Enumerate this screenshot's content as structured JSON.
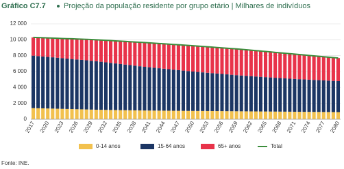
{
  "chart_data": {
    "type": "stacked_bar_line",
    "label": "Gráfico C7.7",
    "title": "Projeção da população residente por grupo etário | Milhares de indivíduos",
    "source": "Fonte: INE.",
    "categories": [
      "2017",
      null,
      null,
      "2020",
      null,
      null,
      "2023",
      null,
      null,
      "2026",
      null,
      null,
      "2029",
      null,
      null,
      "2032",
      null,
      null,
      "2035",
      null,
      null,
      "2038",
      null,
      null,
      "2041",
      null,
      null,
      "2044",
      null,
      null,
      "2047",
      null,
      null,
      "2050",
      null,
      null,
      "2053",
      null,
      null,
      "2056",
      null,
      null,
      "2059",
      null,
      null,
      "2062",
      null,
      null,
      "2065",
      null,
      null,
      "2068",
      null,
      null,
      "2071",
      null,
      null,
      "2074",
      null,
      null,
      "2077",
      null,
      null,
      "2080"
    ],
    "series": [
      {
        "name": "0-14 anos",
        "color": "#f2c14e",
        "values": [
          1400,
          1385,
          1370,
          1355,
          1340,
          1325,
          1310,
          1295,
          1280,
          1265,
          1250,
          1235,
          1215,
          1200,
          1190,
          1180,
          1170,
          1160,
          1150,
          1140,
          1130,
          1120,
          1110,
          1100,
          1095,
          1090,
          1085,
          1080,
          1075,
          1070,
          1065,
          1060,
          1055,
          1050,
          1045,
          1040,
          1035,
          1030,
          1025,
          1020,
          1015,
          1010,
          1005,
          1000,
          995,
          990,
          985,
          980,
          975,
          970,
          965,
          960,
          955,
          950,
          945,
          940,
          935,
          930,
          925,
          920,
          915,
          910,
          905,
          900
        ]
      },
      {
        "name": "15-64 anos",
        "color": "#1c3664",
        "values": [
          6600,
          6560,
          6520,
          6485,
          6450,
          6410,
          6370,
          6330,
          6295,
          6255,
          6215,
          6180,
          6140,
          6100,
          6040,
          5980,
          5920,
          5860,
          5800,
          5740,
          5680,
          5620,
          5560,
          5500,
          5445,
          5390,
          5335,
          5280,
          5225,
          5170,
          5115,
          5060,
          5005,
          4950,
          4905,
          4860,
          4815,
          4770,
          4725,
          4680,
          4635,
          4590,
          4545,
          4500,
          4465,
          4430,
          4395,
          4360,
          4325,
          4290,
          4255,
          4220,
          4185,
          4150,
          4125,
          4100,
          4075,
          4050,
          4025,
          4000,
          3975,
          3950,
          3925,
          3900
        ]
      },
      {
        "name": "65+ anos",
        "color": "#e8334a",
        "values": [
          2300,
          2330,
          2360,
          2390,
          2420,
          2450,
          2480,
          2515,
          2545,
          2575,
          2605,
          2640,
          2670,
          2700,
          2735,
          2770,
          2805,
          2840,
          2875,
          2910,
          2945,
          2980,
          3015,
          3050,
          3070,
          3090,
          3110,
          3130,
          3150,
          3170,
          3190,
          3210,
          3230,
          3250,
          3255,
          3260,
          3265,
          3270,
          3275,
          3280,
          3285,
          3290,
          3295,
          3300,
          3285,
          3270,
          3255,
          3240,
          3225,
          3210,
          3195,
          3180,
          3165,
          3150,
          3125,
          3100,
          3075,
          3050,
          3025,
          3000,
          2975,
          2950,
          2925,
          2900
        ]
      },
      {
        "name": "Total",
        "color": "#3c8d3c",
        "line": true,
        "values": [
          10300,
          10275,
          10250,
          10230,
          10210,
          10185,
          10160,
          10140,
          10120,
          10095,
          10070,
          10055,
          10025,
          10000,
          9965,
          9930,
          9895,
          9860,
          9825,
          9790,
          9755,
          9720,
          9685,
          9650,
          9610,
          9570,
          9530,
          9490,
          9450,
          9410,
          9370,
          9330,
          9290,
          9250,
          9205,
          9160,
          9115,
          9070,
          9025,
          8980,
          8935,
          8890,
          8845,
          8800,
          8745,
          8690,
          8635,
          8580,
          8525,
          8470,
          8415,
          8360,
          8305,
          8250,
          8195,
          8140,
          8085,
          8030,
          7975,
          7920,
          7865,
          7810,
          7755,
          7700
        ]
      }
    ],
    "ylim": [
      0,
      12000
    ],
    "yticks": [
      0,
      {
        "value": 2000,
        "label": "2 000"
      },
      {
        "value": 4000,
        "label": "4 000"
      },
      {
        "value": 6000,
        "label": "6 000"
      },
      {
        "value": 8000,
        "label": "8 000"
      },
      {
        "value": 10000,
        "label": "10 000"
      },
      {
        "value": 12000,
        "label": "12 000"
      }
    ],
    "grid": true
  }
}
